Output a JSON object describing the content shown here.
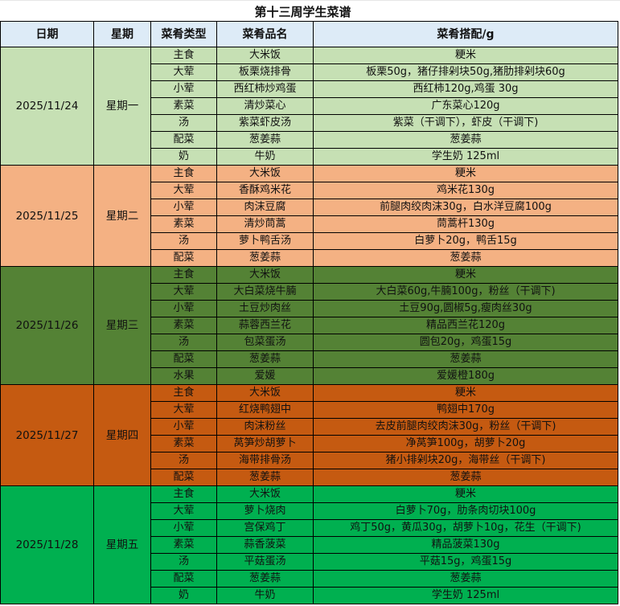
{
  "title": "第十三周学生菜谱",
  "headers": [
    "日期",
    "星期",
    "菜肴类型",
    "菜肴品名",
    "菜肴搭配/g"
  ],
  "days": [
    {
      "date": "2025/11/24",
      "weekday": "星期一",
      "color": "#c6e0b4",
      "items": [
        [
          "主食",
          "大米饭",
          "粳米"
        ],
        [
          "大荤",
          "板栗烧排骨",
          "板栗50g，猪仔排剁块50g,猪肋排剁块60g"
        ],
        [
          "小荤",
          "西红柿炒鸡蛋",
          "西红柿120g,鸡蛋 30g"
        ],
        [
          "素菜",
          "清炒菜心",
          "广东菜心120g"
        ],
        [
          "汤",
          "紫菜虾皮汤",
          "紫菜（干调下），虾皮（干调下)"
        ],
        [
          "配菜",
          "葱姜蒜",
          "葱姜蒜"
        ],
        [
          "奶",
          "牛奶",
          "学生奶 125ml"
        ]
      ]
    },
    {
      "date": "2025/11/25",
      "weekday": "星期二",
      "color": "#f4b183",
      "items": [
        [
          "主食",
          "大米饭",
          "粳米"
        ],
        [
          "大荤",
          "香酥鸡米花",
          "鸡米花130g"
        ],
        [
          "小荤",
          "肉沫豆腐",
          "前腿肉绞肉沫30g，白水洋豆腐100g"
        ],
        [
          "素菜",
          "清炒茼蒿",
          "茼蒿杆130g"
        ],
        [
          "汤",
          "萝卜鸭舌汤",
          "白萝卜20g，鸭舌15g"
        ],
        [
          "配菜",
          "葱姜蒜",
          "葱姜蒜"
        ]
      ]
    },
    {
      "date": "2025/11/26",
      "weekday": "星期三",
      "color": "#548235",
      "items": [
        [
          "主食",
          "大米饭",
          "粳米"
        ],
        [
          "大荤",
          "大白菜烧牛腩",
          "大白菜60g,牛腩100g，粉丝（干调下)"
        ],
        [
          "小荤",
          "土豆炒肉丝",
          "土豆90g,圆椒5g,瘦肉丝30g"
        ],
        [
          "素菜",
          "蒜蓉西兰花",
          "精品西兰花120g"
        ],
        [
          "汤",
          "包菜蛋汤",
          "圆包20g，鸡蛋15g"
        ],
        [
          "配菜",
          "葱姜蒜",
          "葱姜蒜"
        ],
        [
          "水果",
          "爱媛",
          "爱媛橙180g"
        ]
      ]
    },
    {
      "date": "2025/11/27",
      "weekday": "星期四",
      "color": "#c55a11",
      "items": [
        [
          "主食",
          "大米饭",
          "粳米"
        ],
        [
          "大荤",
          "红烧鸭翅中",
          "鸭翅中170g"
        ],
        [
          "小荤",
          "肉沫粉丝",
          "去皮前腿肉绞肉沫30g，粉丝（干调下)"
        ],
        [
          "素菜",
          "莴笋炒胡萝卜",
          "净莴笋100g，胡萝卜20g"
        ],
        [
          "汤",
          "海带排骨汤",
          "猪小排剁块20g，海带丝（干调下)"
        ],
        [
          "配菜",
          "葱姜蒜",
          "葱姜蒜"
        ]
      ]
    },
    {
      "date": "2025/11/28",
      "weekday": "星期五",
      "color": "#00b050",
      "items": [
        [
          "主食",
          "大米饭",
          "粳米"
        ],
        [
          "大荤",
          "萝卜烧肉",
          "白萝卜70g，肋条肉切块100g"
        ],
        [
          "小荤",
          "宫保鸡丁",
          "鸡丁50g，黄瓜30g，胡萝卜10g，花生（干调下)"
        ],
        [
          "素菜",
          "蒜香菠菜",
          "精品菠菜130g"
        ],
        [
          "汤",
          "平菇蛋汤",
          "平菇15g，鸡蛋15g"
        ],
        [
          "配菜",
          "葱姜蒜",
          "葱姜蒜"
        ],
        [
          "奶",
          "牛奶",
          "学生奶 125ml"
        ]
      ]
    }
  ]
}
